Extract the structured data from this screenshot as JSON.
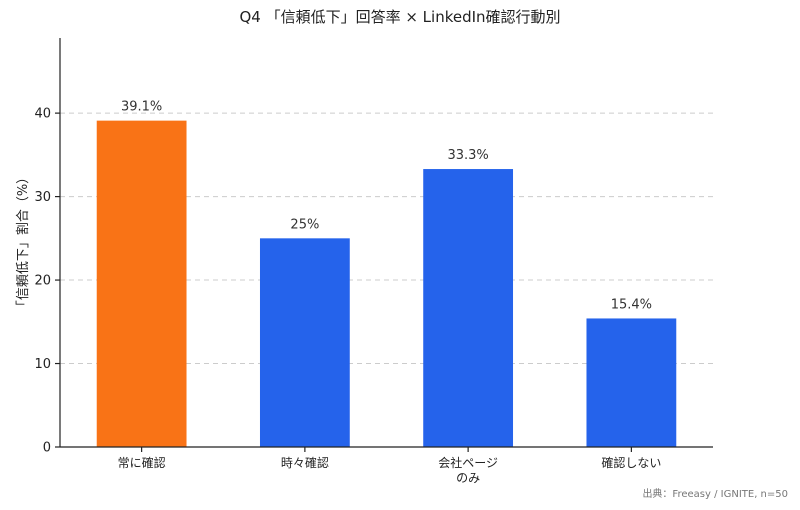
{
  "chart_data": {
    "type": "bar",
    "title": "Q4 「信頼低下」回答率 × LinkedIn確認行動別",
    "xlabel": "",
    "ylabel": "「信頼低下」割合（%）",
    "categories": [
      [
        "常に確認"
      ],
      [
        "時々確認"
      ],
      [
        "会社ページ",
        "のみ"
      ],
      [
        "確認しない"
      ]
    ],
    "values": [
      39.1,
      25,
      33.3,
      15.4
    ],
    "value_labels": [
      "39.1%",
      "25%",
      "33.3%",
      "15.4%"
    ],
    "bar_colors": [
      "#f97316",
      "#2563eb",
      "#2563eb",
      "#2563eb"
    ],
    "ylim": [
      0,
      49
    ],
    "yticks": [
      0,
      10,
      20,
      30,
      40
    ],
    "grid": true,
    "legend": "none"
  },
  "source_note": "出典：Freeasy / IGNITE, n=50"
}
